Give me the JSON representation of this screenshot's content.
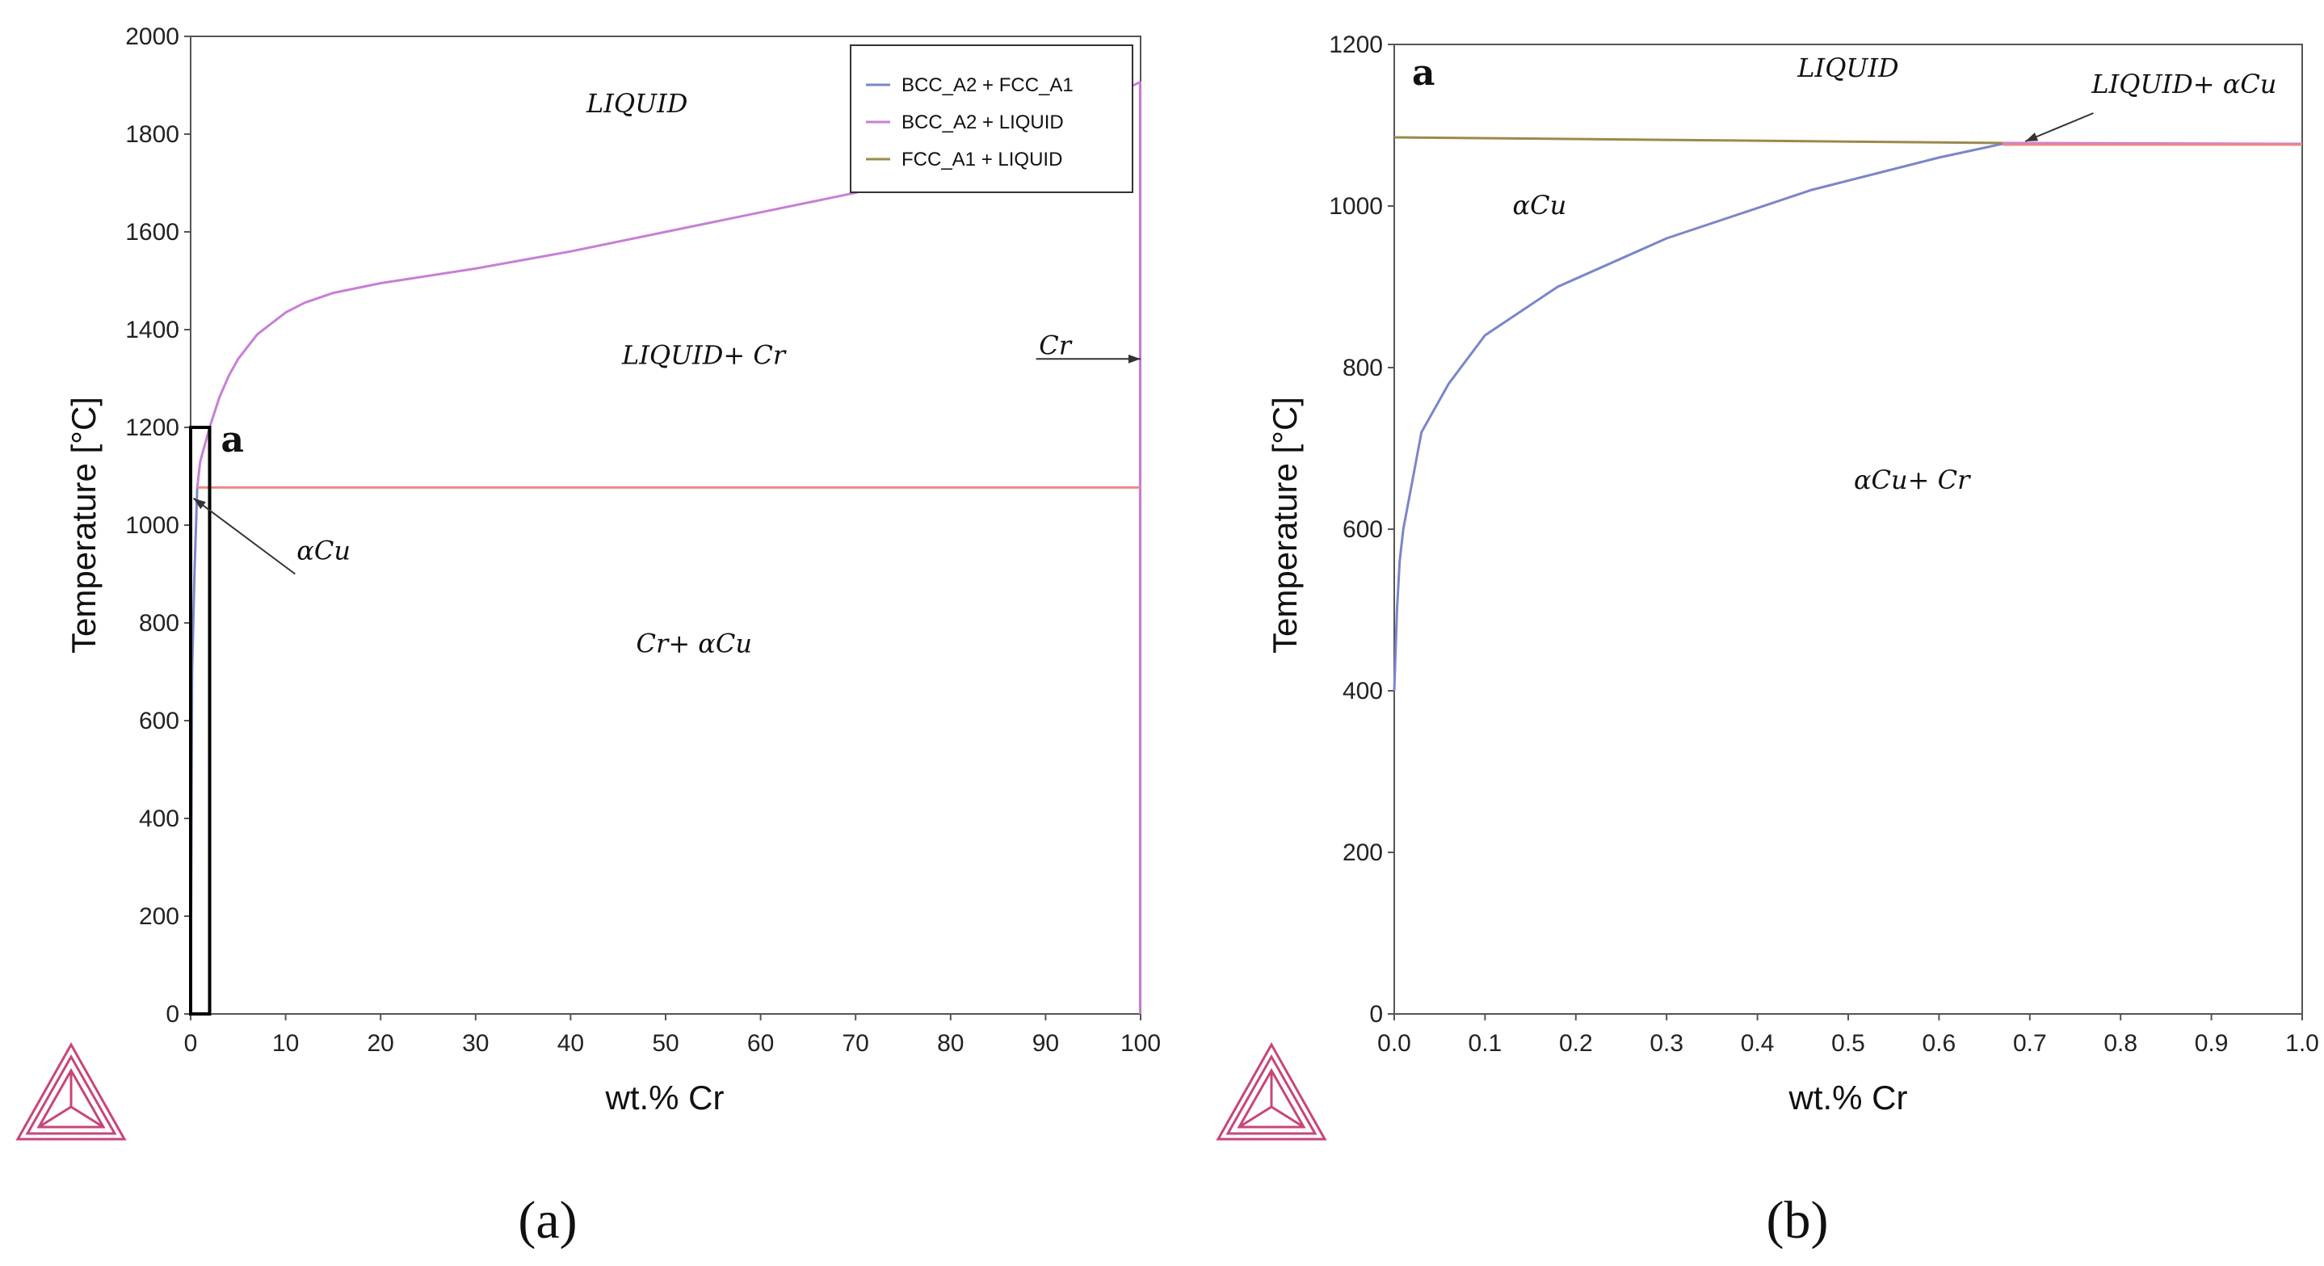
{
  "chart_data": [
    {
      "type": "line",
      "panel_caption": "(a)",
      "xlabel": "wt.% Cr",
      "ylabel": "Temperature [°C]",
      "xlim": [
        0,
        100
      ],
      "ylim": [
        0,
        2000
      ],
      "xticks": [
        "0",
        "10",
        "20",
        "30",
        "40",
        "50",
        "60",
        "70",
        "80",
        "90",
        "100"
      ],
      "yticks": [
        "0",
        "200",
        "400",
        "600",
        "800",
        "1000",
        "1200",
        "1400",
        "1600",
        "1800",
        "2000"
      ],
      "legend": {
        "placement": "top-right",
        "entries": [
          "BCC_A2 + FCC_A1",
          "BCC_A2 + LIQUID",
          "FCC_A1 + LIQUID"
        ]
      },
      "colors": {
        "bcc_fcc": "#7a86c8",
        "bcc_liq": "#c77fd6",
        "fcc_liq": "#9a8a4a",
        "isotherm": "#ee8888"
      },
      "series": [
        {
          "name": "BCC_A2 + LIQUID",
          "x": [
            0.7,
            1,
            2,
            3,
            4,
            5,
            7,
            10,
            12,
            15,
            20,
            30,
            40,
            50,
            60,
            70,
            80,
            90,
            95,
            100
          ],
          "y": [
            1077,
            1130,
            1200,
            1260,
            1305,
            1340,
            1390,
            1435,
            1455,
            1475,
            1495,
            1525,
            1560,
            1600,
            1640,
            1680,
            1740,
            1810,
            1860,
            1907
          ]
        },
        {
          "name": "BCC_A2 + FCC_A1",
          "x": [
            0,
            0.15,
            0.4,
            0.7
          ],
          "y": [
            0,
            700,
            900,
            1077
          ]
        },
        {
          "name": "Cr solvus",
          "x": [
            99.95,
            99.95
          ],
          "y": [
            0,
            1907
          ]
        },
        {
          "name": "eutectic isotherm",
          "x": [
            0.7,
            100
          ],
          "y": [
            1077,
            1077
          ]
        }
      ],
      "annotations": [
        {
          "text": "LIQUID",
          "x": 47,
          "y": 1845
        },
        {
          "text": "LIQUID+ Cr",
          "x": 54,
          "y": 1330
        },
        {
          "text": "Cr",
          "x": 91,
          "y": 1350
        },
        {
          "text": "αCu",
          "x": 14,
          "y": 930
        },
        {
          "text": "Cr+ αCu",
          "x": 53,
          "y": 740
        }
      ],
      "inset_box": {
        "label": "a",
        "xrange": [
          0,
          2
        ],
        "yrange": [
          0,
          1200
        ]
      }
    },
    {
      "type": "line",
      "panel_caption": "(b)",
      "xlabel": "wt.% Cr",
      "ylabel": "Temperature [°C]",
      "xlim": [
        0,
        1
      ],
      "ylim": [
        0,
        1200
      ],
      "xticks": [
        "0.0",
        "0.1",
        "0.2",
        "0.3",
        "0.4",
        "0.5",
        "0.6",
        "0.7",
        "0.8",
        "0.9",
        "1.0"
      ],
      "yticks": [
        "0",
        "200",
        "400",
        "600",
        "800",
        "1000",
        "1200"
      ],
      "panel_label": "a",
      "series": [
        {
          "name": "BCC_A2 + FCC_A1",
          "x": [
            0.0,
            0.003,
            0.006,
            0.01,
            0.02,
            0.03,
            0.06,
            0.1,
            0.18,
            0.3,
            0.46,
            0.6,
            0.67
          ],
          "y": [
            400,
            500,
            560,
            600,
            660,
            720,
            780,
            840,
            900,
            960,
            1020,
            1060,
            1077
          ]
        },
        {
          "name": "FCC_A1 + LIQUID",
          "x": [
            0.0,
            0.67
          ],
          "y": [
            1085,
            1078
          ]
        },
        {
          "name": "BCC_A2 + LIQUID",
          "x": [
            0.67,
            1.0
          ],
          "y": [
            1078,
            1077
          ]
        },
        {
          "name": "eutectic isotherm",
          "x": [
            0.67,
            1.0
          ],
          "y": [
            1076,
            1076
          ]
        }
      ],
      "annotations": [
        {
          "text": "LIQUID",
          "x": 0.5,
          "y": 1160
        },
        {
          "text": "LIQUID+ αCu",
          "x": 0.87,
          "y": 1140
        },
        {
          "text": "αCu",
          "x": 0.16,
          "y": 990
        },
        {
          "text": "αCu+ Cr",
          "x": 0.57,
          "y": 650
        }
      ]
    }
  ]
}
